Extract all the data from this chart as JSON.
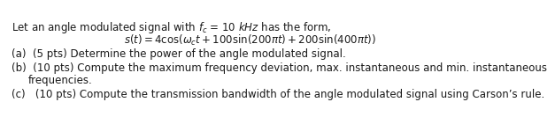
{
  "background_color": "#ffffff",
  "line1": "Let an angle modulated signal with $f_c$ = 10 $kHz$ has the form,",
  "line2": "$s(t) = 4\\cos(\\omega_c t + 100\\sin(200\\pi t) + 200\\sin(400\\pi t))$",
  "line3a": "(a)  (5 pts) Determine the power of the angle modulated signal.",
  "line3b": "(b)  (10 pts) Compute the maximum frequency deviation, max. instantaneous and min. instantaneous",
  "line3b2": "       frequencies.",
  "line3c": "(c)   (10 pts) Compute the transmission bandwidth of the angle modulated signal using Carson’s rule.",
  "fontsize": 8.5,
  "text_color": "#1a1a1a",
  "fig_width": 5.46,
  "fig_height": 1.21
}
